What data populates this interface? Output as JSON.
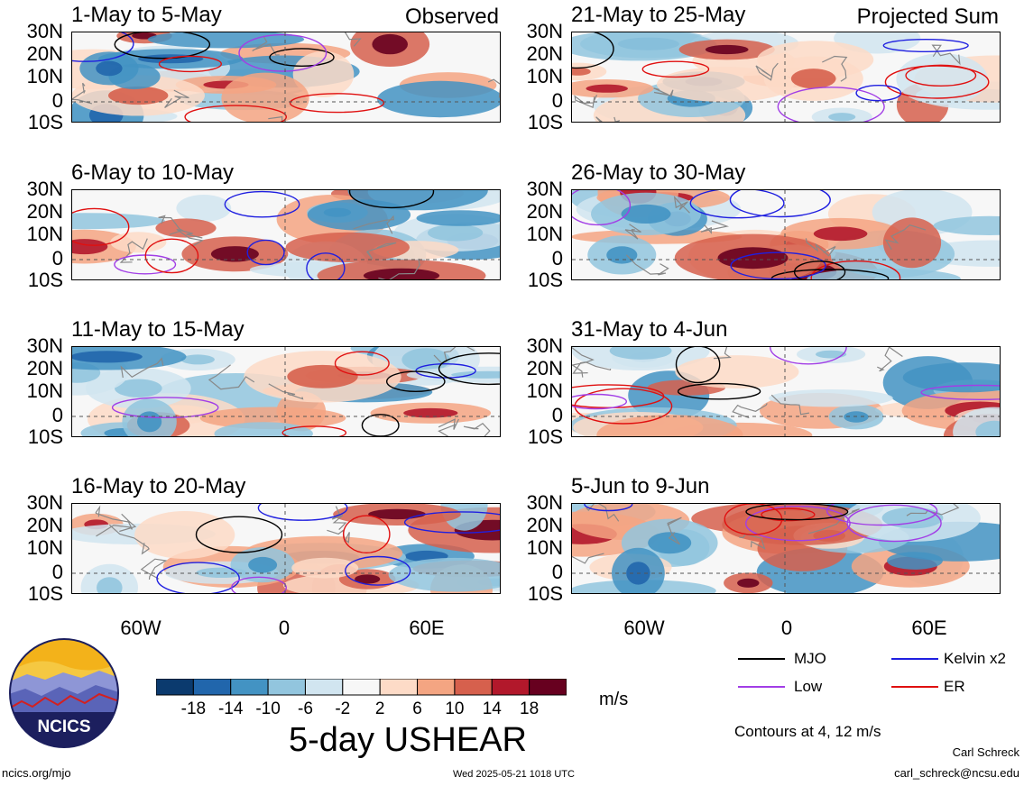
{
  "panels": [
    {
      "title": "1-May to 5-May",
      "tag": "Observed",
      "col": 0,
      "row": 0
    },
    {
      "title": "21-May to 25-May",
      "tag": "Projected Sum",
      "col": 1,
      "row": 0
    },
    {
      "title": "6-May to 10-May",
      "tag": "",
      "col": 0,
      "row": 1
    },
    {
      "title": "26-May to 30-May",
      "tag": "",
      "col": 1,
      "row": 1
    },
    {
      "title": "11-May to 15-May",
      "tag": "",
      "col": 0,
      "row": 2
    },
    {
      "title": "31-May to 4-Jun",
      "tag": "",
      "col": 1,
      "row": 2
    },
    {
      "title": "16-May to 20-May",
      "tag": "",
      "col": 0,
      "row": 3
    },
    {
      "title": "5-Jun to 9-Jun",
      "tag": "",
      "col": 1,
      "row": 3
    }
  ],
  "lat_labels": [
    "30N",
    "20N",
    "10N",
    "0",
    "10S"
  ],
  "lon_labels": [
    "60W",
    "0",
    "60E"
  ],
  "colorbar": {
    "colors": [
      "#0b3a6e",
      "#2166ac",
      "#4393c3",
      "#92c5de",
      "#d1e5f0",
      "#f7f7f7",
      "#fddbc7",
      "#f4a582",
      "#d6604d",
      "#b2182b",
      "#67001f"
    ],
    "ticks": [
      "-18",
      "-14",
      "-10",
      "-6",
      "-2",
      "2",
      "6",
      "10",
      "14",
      "18"
    ],
    "units": "m/s"
  },
  "title": "5-day USHEAR",
  "legend": [
    {
      "label": "MJO",
      "color": "#000000"
    },
    {
      "label": "Kelvin x2",
      "color": "#1f1fe0"
    },
    {
      "label": "Low",
      "color": "#a23ee6"
    },
    {
      "label": "ER",
      "color": "#e01010"
    }
  ],
  "contours_note": "Contours at 4, 12 m/s",
  "logo_text": "NCICS",
  "footer": {
    "site": "ncics.org/mjo",
    "timestamp": "Wed 2025-05-21 1018 UTC",
    "author": "Carl Schreck",
    "email": "carl_schreck@ncsu.edu"
  }
}
